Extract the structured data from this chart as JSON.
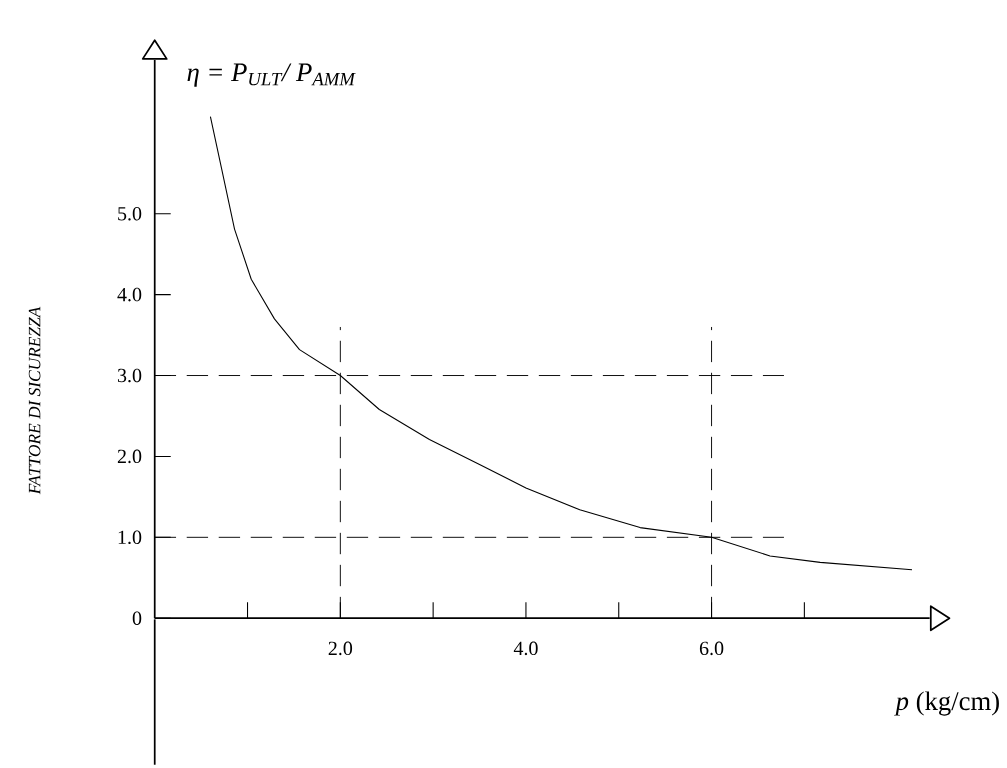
{
  "chart_data": {
    "type": "line",
    "title": "η = *P*$_{ULT}$/ *P*$_{AMM}$",
    "xlabel": "*p* (kg/cm)",
    "ylabel": "FATTORE DI SICUREZZA",
    "x": [
      0.6,
      0.72,
      0.86,
      1.04,
      1.29,
      1.56,
      2.0,
      2.42,
      2.96,
      3.5,
      4.0,
      4.58,
      5.23,
      6.0,
      6.63,
      7.17,
      8.16
    ],
    "values": [
      6.2,
      5.56,
      4.81,
      4.19,
      3.7,
      3.32,
      3.0,
      2.58,
      2.21,
      1.9,
      1.61,
      1.34,
      1.12,
      1.0,
      0.77,
      0.69,
      0.6
    ],
    "color": "#000000",
    "line_style": "solid",
    "marker": "none",
    "xlim": [
      0,
      8.35
    ],
    "ylim": [
      0,
      6.9
    ],
    "xticks": [
      {
        "value": 1,
        "label": null
      },
      {
        "value": 2,
        "label": "2.0"
      },
      {
        "value": 3,
        "label": null
      },
      {
        "value": 4,
        "label": "4.0"
      },
      {
        "value": 5,
        "label": null
      },
      {
        "value": 6,
        "label": "6.0"
      },
      {
        "value": 7,
        "label": null
      }
    ],
    "yticks": [
      0,
      {
        "value": 1,
        "label": "1.0"
      },
      {
        "value": 2,
        "label": "2.0"
      },
      {
        "value": 3,
        "label": "3.0"
      },
      {
        "value": 4,
        "label": "4.0"
      },
      {
        "value": 5,
        "label": "5.0"
      }
    ],
    "ref_lines": [
      {
        "axis": "x",
        "value": 2,
        "line_style": "dashed"
      },
      {
        "axis": "y",
        "value": 3,
        "line_style": "dashed"
      },
      {
        "axis": "x",
        "value": 6,
        "line_style": "dashed"
      },
      {
        "axis": "y",
        "value": 1,
        "line_style": "dashed"
      }
    ],
    "grid": false
  }
}
